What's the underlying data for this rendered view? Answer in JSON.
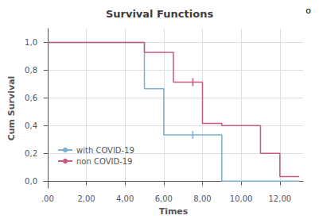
{
  "chart_data": {
    "type": "line",
    "title": "Survival Functions",
    "xlabel": "Times",
    "ylabel": "Cum Survival",
    "xlim": [
      -0.2,
      13.2
    ],
    "ylim": [
      -0.05,
      1.1
    ],
    "xticks": [
      {
        "value": 0.0,
        "label": ".00"
      },
      {
        "value": 2.0,
        "label": "2,00"
      },
      {
        "value": 4.0,
        "label": "4,00"
      },
      {
        "value": 6.0,
        "label": "6,00"
      },
      {
        "value": 8.0,
        "label": "8,00"
      },
      {
        "value": 10.0,
        "label": "10,00"
      },
      {
        "value": 12.0,
        "label": "12,00"
      }
    ],
    "yticks": [
      {
        "value": 0.0,
        "label": "0,0"
      },
      {
        "value": 0.2,
        "label": "0,2"
      },
      {
        "value": 0.4,
        "label": "0,4"
      },
      {
        "value": 0.6,
        "label": "0,6"
      },
      {
        "value": 0.8,
        "label": "0,8"
      },
      {
        "value": 1.0,
        "label": "1,0"
      }
    ],
    "grid": true,
    "legend": "lower left",
    "annotation": "o",
    "series": [
      {
        "name": "with COVID-19",
        "color": "#7ab0d4",
        "x": [
          0.0,
          5.0,
          5.0,
          6.0,
          6.0,
          8.0,
          8.0,
          9.0,
          9.0,
          13.0
        ],
        "values": [
          1.0,
          1.0,
          0.667,
          0.667,
          0.333,
          0.333,
          0.333,
          0.333,
          0.0,
          0.0
        ]
      },
      {
        "name": "non COVID-19",
        "color": "#c85a7c",
        "x": [
          0.0,
          5.0,
          5.0,
          6.5,
          6.5,
          7.0,
          7.0,
          8.0,
          8.0,
          9.0,
          9.0,
          11.0,
          11.0,
          12.0,
          12.0,
          13.0
        ],
        "values": [
          1.0,
          1.0,
          0.929,
          0.929,
          0.714,
          0.714,
          0.714,
          0.714,
          0.417,
          0.417,
          0.4,
          0.4,
          0.2,
          0.2,
          0.033,
          0.033
        ]
      },
      {
        "type": "scatter",
        "marker": "vline",
        "color": "#7ab0d4",
        "x": [
          7.5
        ],
        "values": [
          0.333
        ]
      },
      {
        "type": "scatter",
        "marker": "vline",
        "color": "#c85a7c",
        "x": [
          7.5
        ],
        "values": [
          0.714
        ]
      }
    ]
  }
}
